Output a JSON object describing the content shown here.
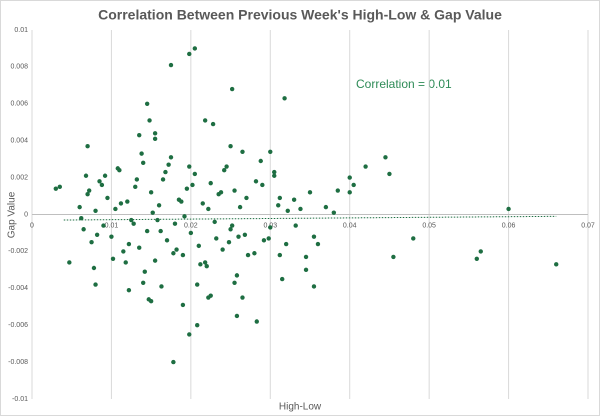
{
  "chart_data": {
    "type": "scatter",
    "title": "Correlation Between Previous Week's High-Low & Gap Value",
    "x_label": "High-Low",
    "y_label": "Gap Value",
    "annotation": "Correlation = 0.01",
    "color": "#1e6e42",
    "trendline_color": "#1e6e42",
    "xlim": [
      0,
      0.07
    ],
    "xticks": [
      0,
      0.01,
      0.02,
      0.03,
      0.04,
      0.05,
      0.06,
      0.07
    ],
    "ylim": [
      -0.01,
      0.01
    ],
    "yticks": [
      -0.01,
      -0.008,
      -0.006,
      -0.004,
      -0.002,
      0,
      0.002,
      0.004,
      0.006,
      0.008,
      0.01
    ],
    "grid": "x",
    "trendline": {
      "x": [
        0.004,
        0.066
      ],
      "y": [
        -0.0003,
        -0.0001
      ]
    },
    "x": [
      0.0145,
      0.0175,
      0.0198,
      0.0205,
      0.0252,
      0.0318,
      0.0178,
      0.0198,
      0.0208,
      0.0283,
      0.0258,
      0.06,
      0.066,
      0.0565,
      0.056,
      0.048,
      0.0455,
      0.0445,
      0.045,
      0.042,
      0.0405,
      0.04,
      0.04,
      0.0385,
      0.038,
      0.037,
      0.035,
      0.0355,
      0.036,
      0.0345,
      0.0345,
      0.0355,
      0.0312,
      0.0315,
      0.0338,
      0.003,
      0.0047,
      0.0035,
      0.007,
      0.008,
      0.0078,
      0.0122,
      0.0147,
      0.015,
      0.0163,
      0.019,
      0.0208,
      0.0225,
      0.0222,
      0.0265,
      0.0258,
      0.0255,
      0.014,
      0.0135,
      0.0155,
      0.0155,
      0.0148,
      0.0218,
      0.0228,
      0.025,
      0.0265,
      0.03,
      0.0305,
      0.0305,
      0.006,
      0.0065,
      0.007,
      0.0075,
      0.008,
      0.0085,
      0.009,
      0.0095,
      0.01,
      0.0105,
      0.011,
      0.0115,
      0.012,
      0.0125,
      0.013,
      0.0135,
      0.014,
      0.0145,
      0.015,
      0.0155,
      0.016,
      0.0165,
      0.017,
      0.0175,
      0.018,
      0.0185,
      0.019,
      0.0195,
      0.02,
      0.0205,
      0.021,
      0.0215,
      0.022,
      0.0225,
      0.023,
      0.0235,
      0.024,
      0.0245,
      0.025,
      0.0255,
      0.026,
      0.027,
      0.028,
      0.029,
      0.03,
      0.031,
      0.032,
      0.033,
      0.0062,
      0.0072,
      0.0082,
      0.0092,
      0.0102,
      0.0112,
      0.0122,
      0.0132,
      0.0142,
      0.0152,
      0.0162,
      0.0172,
      0.0182,
      0.0192,
      0.0202,
      0.0212,
      0.0222,
      0.0232,
      0.0242,
      0.0252,
      0.0262,
      0.0272,
      0.0282,
      0.0292,
      0.0312,
      0.0332,
      0.0068,
      0.0088,
      0.0108,
      0.0118,
      0.0128,
      0.0138,
      0.0158,
      0.0168,
      0.0178,
      0.0188,
      0.0198,
      0.0218,
      0.0238,
      0.0248,
      0.0268,
      0.0288,
      0.0298,
      0.0322
    ],
    "values": [
      0.006,
      0.0081,
      0.0087,
      0.009,
      0.0068,
      0.0063,
      -0.008,
      -0.0065,
      -0.006,
      -0.0058,
      -0.0055,
      0.0003,
      -0.0027,
      -0.002,
      -0.0024,
      -0.0013,
      -0.0023,
      0.0031,
      0.0022,
      0.0026,
      0.0016,
      0.002,
      0.0012,
      0.0013,
      0.0001,
      0.0004,
      0.0012,
      -0.0012,
      -0.0016,
      -0.0023,
      -0.003,
      -0.0039,
      -0.0022,
      -0.0035,
      0.0003,
      0.0014,
      -0.0026,
      0.0015,
      0.0037,
      -0.0038,
      -0.0029,
      -0.0041,
      -0.0046,
      -0.0047,
      -0.0039,
      -0.0049,
      -0.0038,
      -0.0044,
      -0.0045,
      -0.0045,
      -0.0033,
      -0.0037,
      -0.0037,
      0.0043,
      0.0044,
      0.0041,
      0.0051,
      0.0051,
      0.0049,
      0.0037,
      0.0034,
      0.0034,
      0.0021,
      0.0023,
      0.0004,
      -0.0008,
      0.0011,
      -0.0015,
      0.0002,
      0.0018,
      -0.0006,
      0.0009,
      -0.0012,
      0.0003,
      0.0024,
      -0.002,
      0.0007,
      -0.0003,
      0.0015,
      -0.0018,
      0.0028,
      -0.0009,
      0.0012,
      -0.0025,
      0.0005,
      0.0019,
      -0.0014,
      0.0031,
      -0.0005,
      0.0008,
      -0.0022,
      0.0014,
      -0.001,
      0.0022,
      -0.0017,
      0.0006,
      -0.0028,
      0.0017,
      -0.0004,
      0.0011,
      -0.0019,
      0.0026,
      -0.0008,
      0.0013,
      -0.0012,
      0.0009,
      -0.0021,
      0.0016,
      -0.0007,
      0.0005,
      -0.0016,
      0.0008,
      -0.0002,
      0.0013,
      -0.0011,
      0.0021,
      -0.0024,
      0.0006,
      -0.0016,
      0.0019,
      -0.0031,
      0.0001,
      -0.0009,
      0.0027,
      -0.0019,
      -0.0001,
      0.0016,
      -0.0027,
      0.0003,
      -0.0013,
      0.0024,
      -0.0006,
      0.0004,
      -0.0022,
      0.0018,
      -0.0014,
      0.0009,
      -0.0006,
      0.0021,
      0.0016,
      0.0025,
      -0.0026,
      -0.0005,
      0.0033,
      -0.0003,
      0.0023,
      -0.0021,
      0.0007,
      0.0026,
      -0.0026,
      0.0012,
      -0.0015,
      -0.0011,
      0.0029,
      -0.0013,
      0.0002
    ]
  }
}
